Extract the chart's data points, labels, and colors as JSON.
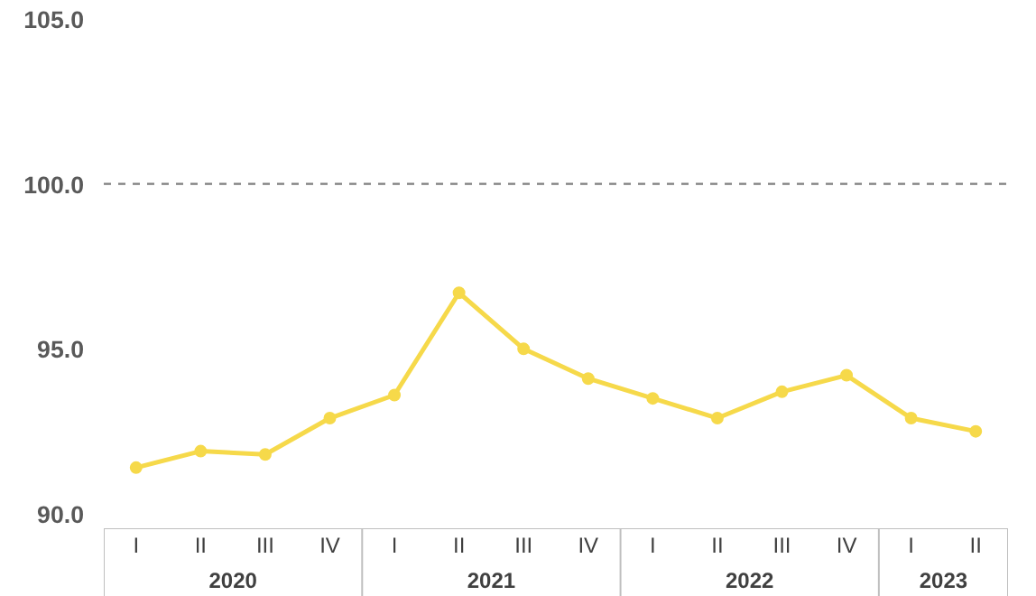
{
  "chart_data": {
    "type": "line",
    "categories": [
      "I",
      "II",
      "III",
      "IV",
      "I",
      "II",
      "III",
      "IV",
      "I",
      "II",
      "III",
      "IV",
      "I",
      "II"
    ],
    "series": [
      {
        "color": "#f6d94a",
        "values": [
          91.4,
          91.9,
          91.8,
          92.9,
          93.6,
          96.7,
          95.0,
          94.1,
          93.5,
          92.9,
          93.7,
          94.2,
          92.9,
          92.5
        ]
      }
    ],
    "annotations": [
      "2020",
      "2021",
      "2022",
      "2023"
    ],
    "ylim": [
      90,
      105
    ],
    "yticks": [
      {
        "value": 90,
        "label": "90.0"
      },
      {
        "value": 95,
        "label": "95.0"
      },
      {
        "value": 100,
        "label": "100.0"
      },
      {
        "value": 105,
        "label": "105.0"
      }
    ],
    "ref_lines": [
      {
        "axis": "y",
        "value": 100,
        "color": "#7f7f7f",
        "line_style": "dashed"
      }
    ],
    "marker": "circle",
    "line_style": "solid",
    "grid": false
  }
}
